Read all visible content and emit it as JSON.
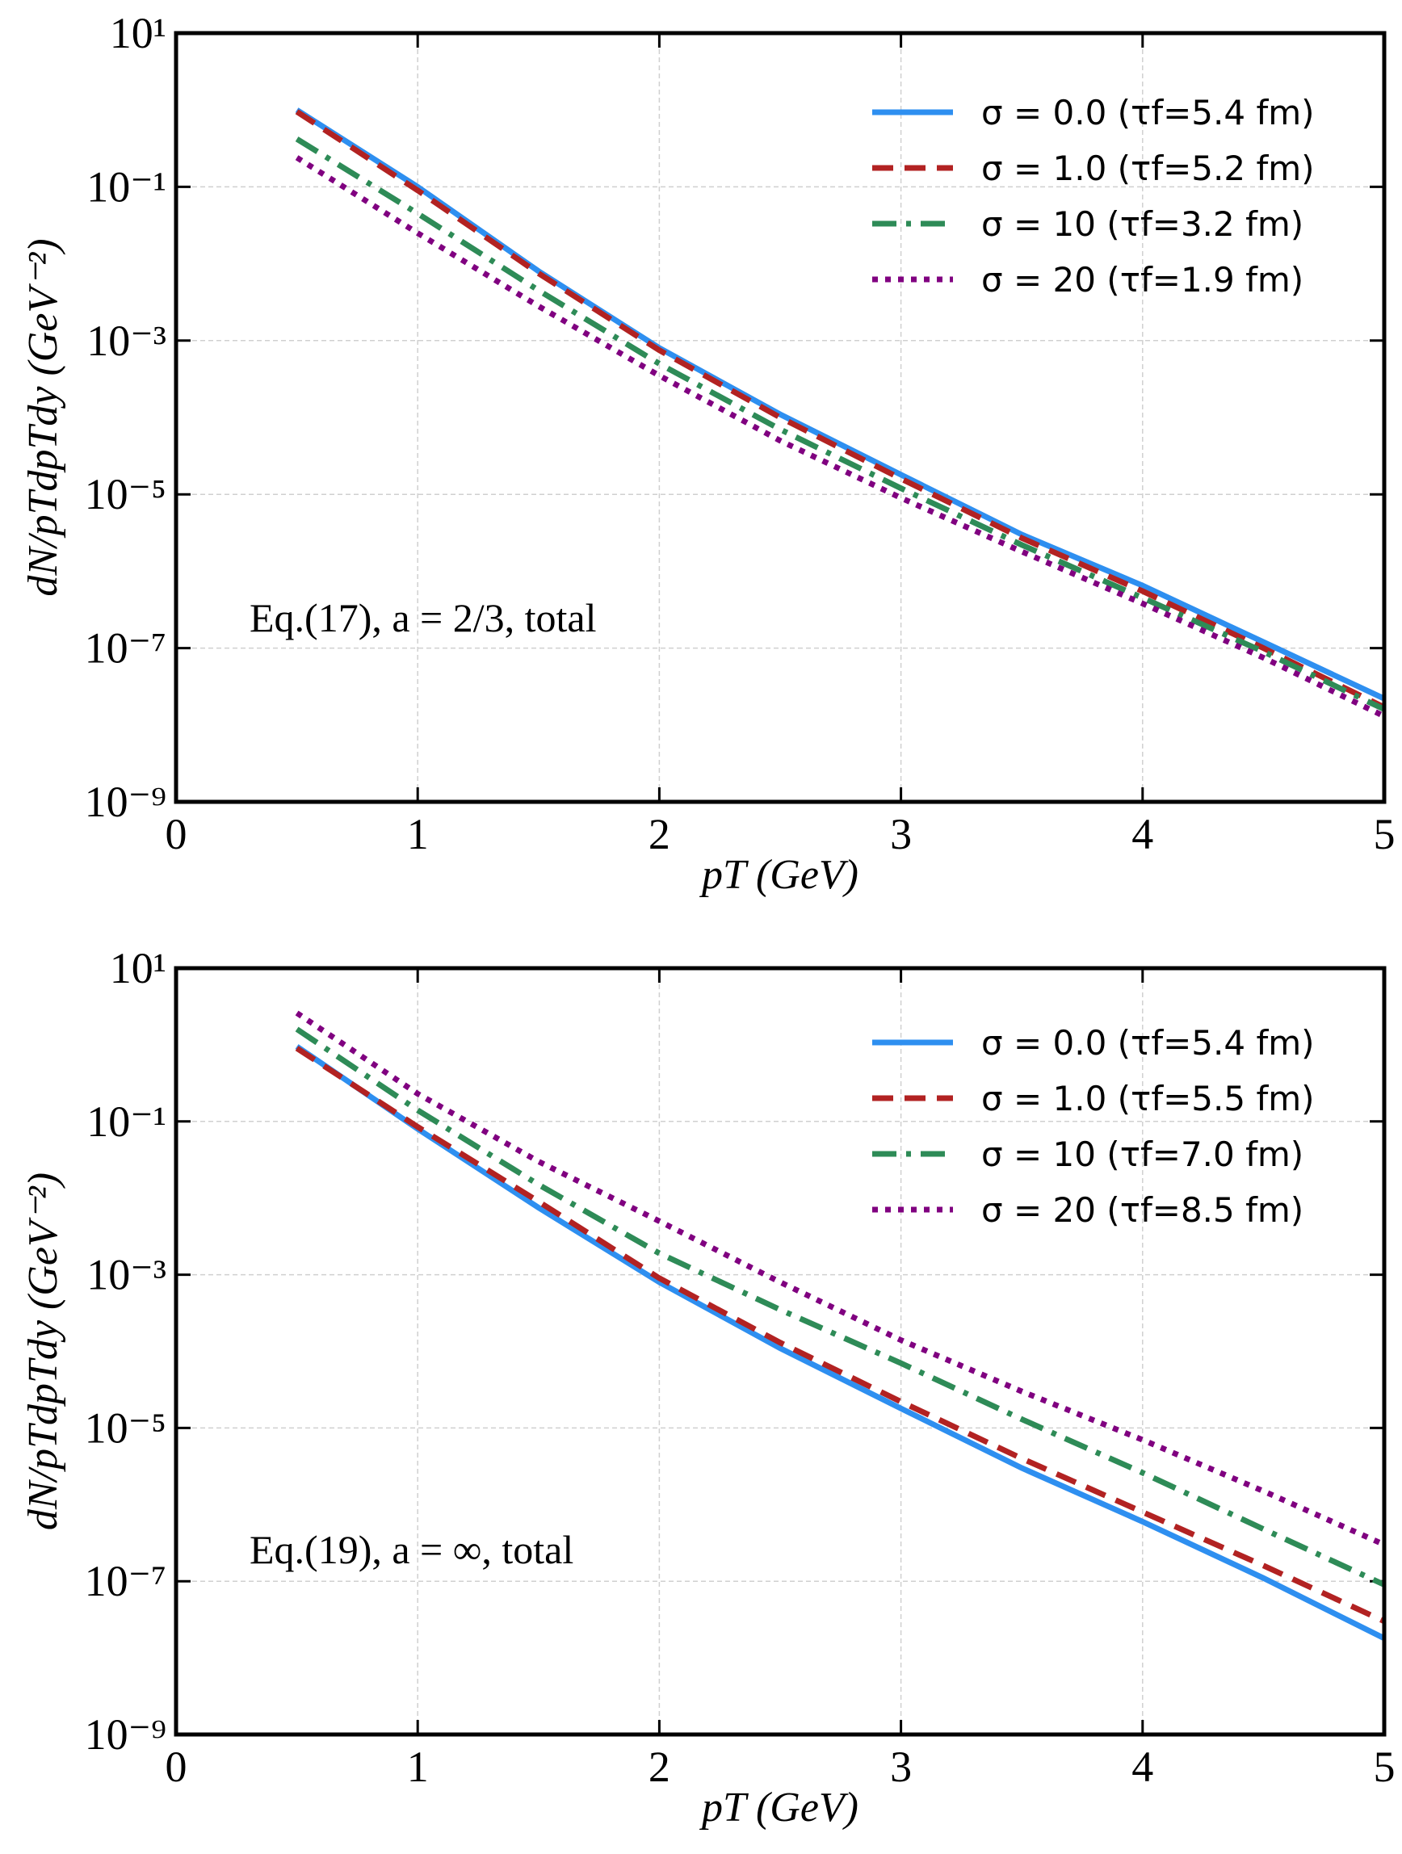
{
  "chart_data": [
    {
      "type": "line",
      "log_y": true,
      "grid": true,
      "legend": "upper right",
      "xlabel": "pT (GeV)",
      "ylabel": "dN/pTdpTdy (GeV⁻²)",
      "annotation": "Eq.(17), a = 2/3, total",
      "xlim": [
        0,
        5
      ],
      "xticks": [
        0,
        1,
        2,
        3,
        4,
        5
      ],
      "ylim": [
        1e-09,
        10
      ],
      "yticks": [
        {
          "value": 1e-09,
          "label": "10⁻⁹"
        },
        {
          "value": 1e-07,
          "label": "10⁻⁷"
        },
        {
          "value": 1e-05,
          "label": "10⁻⁵"
        },
        {
          "value": 0.001,
          "label": "10⁻³"
        },
        {
          "value": 0.1,
          "label": "10⁻¹"
        },
        {
          "value": 10,
          "label": "10¹"
        }
      ],
      "x": [
        0.5,
        1,
        1.5,
        2,
        2.5,
        3,
        3.5,
        4,
        4.5,
        5
      ],
      "series": [
        {
          "name": "σ = 0.0 (τf=5.4 fm)",
          "color": "#2e8ff0",
          "dash": "solid",
          "values": [
            1.0,
            0.1,
            0.008,
            0.0008,
            0.00011,
            1.8e-05,
            3e-06,
            6.5e-07,
            1.2e-07,
            2.2e-08
          ]
        },
        {
          "name": "σ = 1.0 (τf=5.2 fm)",
          "color": "#b22222",
          "dash": "dashed",
          "values": [
            0.95,
            0.09,
            0.0075,
            0.00075,
            0.0001,
            1.6e-05,
            2.7e-06,
            5.5e-07,
            1e-07,
            1.7e-08
          ]
        },
        {
          "name": "σ = 10 (τf=3.2 fm)",
          "color": "#2e8b57",
          "dash": "dashdot",
          "values": [
            0.42,
            0.045,
            0.0045,
            0.0005,
            7e-05,
            1.2e-05,
            2.2e-06,
            4.5e-07,
            9e-08,
            1.6e-08
          ]
        },
        {
          "name": "σ = 20 (τf=1.9 fm)",
          "color": "#800080",
          "dash": "dotted",
          "values": [
            0.24,
            0.025,
            0.0028,
            0.00035,
            5e-05,
            9e-06,
            1.8e-06,
            3.8e-07,
            7.5e-08,
            1.3e-08
          ]
        }
      ]
    },
    {
      "type": "line",
      "log_y": true,
      "grid": true,
      "legend": "upper right",
      "xlabel": "pT (GeV)",
      "ylabel": "dN/pTdpTdy (GeV⁻²)",
      "annotation": "Eq.(19), a = ∞, total",
      "xlim": [
        0,
        5
      ],
      "xticks": [
        0,
        1,
        2,
        3,
        4,
        5
      ],
      "ylim": [
        1e-09,
        10
      ],
      "yticks": [
        {
          "value": 1e-09,
          "label": "10⁻⁹"
        },
        {
          "value": 1e-07,
          "label": "10⁻⁷"
        },
        {
          "value": 1e-05,
          "label": "10⁻⁵"
        },
        {
          "value": 0.001,
          "label": "10⁻³"
        },
        {
          "value": 0.1,
          "label": "10⁻¹"
        },
        {
          "value": 10,
          "label": "10¹"
        }
      ],
      "x": [
        0.5,
        1,
        1.5,
        2,
        2.5,
        3,
        3.5,
        4,
        4.5,
        5
      ],
      "series": [
        {
          "name": "σ = 0.0 (τf=5.4 fm)",
          "color": "#2e8ff0",
          "dash": "solid",
          "values": [
            0.95,
            0.08,
            0.0075,
            0.0008,
            0.00011,
            1.8e-05,
            3e-06,
            6e-07,
            1.1e-07,
            1.8e-08
          ]
        },
        {
          "name": "σ = 1.0 (τf=5.5 fm)",
          "color": "#b22222",
          "dash": "dashed",
          "values": [
            0.9,
            0.085,
            0.009,
            0.0009,
            0.00013,
            2.2e-05,
            4e-06,
            8e-07,
            1.6e-07,
            3e-08
          ]
        },
        {
          "name": "σ = 10 (τf=7.0 fm)",
          "color": "#2e8b57",
          "dash": "dashdot",
          "values": [
            1.6,
            0.14,
            0.015,
            0.0019,
            0.00035,
            7e-05,
            1.3e-05,
            2.6e-06,
            4.8e-07,
            9e-08
          ]
        },
        {
          "name": "σ = 20 (τf=8.5 fm)",
          "color": "#800080",
          "dash": "dotted",
          "values": [
            2.6,
            0.23,
            0.03,
            0.005,
            0.0008,
            0.00014,
            3e-05,
            7e-06,
            1.5e-06,
            3e-07
          ]
        }
      ]
    }
  ]
}
